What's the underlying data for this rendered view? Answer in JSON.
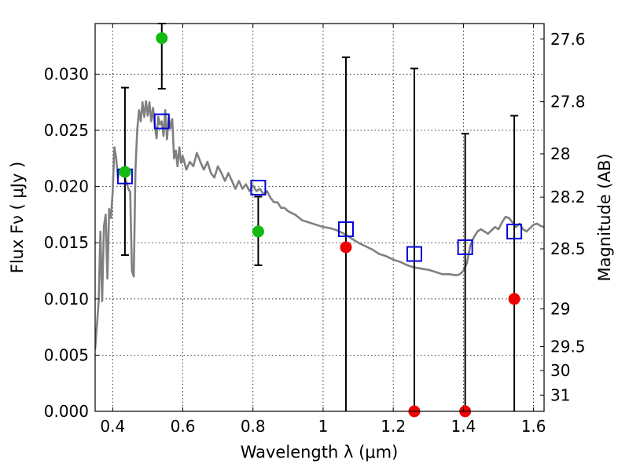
{
  "chart_data": {
    "type": "scatter",
    "xlabel": "Wavelength  λ (μm)",
    "ylabel": "Flux  Fν  ( μJy )",
    "y2label": "Magnitude (AB)",
    "xlim": [
      0.35,
      1.63
    ],
    "ylim": [
      0.0,
      0.0345
    ],
    "x_ticks": [
      {
        "value": 0.4,
        "label": "0.4"
      },
      {
        "value": 0.6,
        "label": "0.6"
      },
      {
        "value": 0.8,
        "label": "0.8"
      },
      {
        "value": 1.0,
        "label": "1"
      },
      {
        "value": 1.2,
        "label": "1.2"
      },
      {
        "value": 1.4,
        "label": "1.4"
      },
      {
        "value": 1.6,
        "label": "1.6"
      }
    ],
    "y_ticks": [
      {
        "value": 0.0,
        "label": "0.000"
      },
      {
        "value": 0.005,
        "label": "0.005"
      },
      {
        "value": 0.01,
        "label": "0.010"
      },
      {
        "value": 0.015,
        "label": "0.015"
      },
      {
        "value": 0.02,
        "label": "0.020"
      },
      {
        "value": 0.025,
        "label": "0.025"
      },
      {
        "value": 0.03,
        "label": "0.030"
      }
    ],
    "y2_ticks": [
      {
        "mag": 27.6,
        "label": "27.6"
      },
      {
        "mag": 27.8,
        "label": "27.8"
      },
      {
        "mag": 28.0,
        "label": "28"
      },
      {
        "mag": 28.2,
        "label": "28.2"
      },
      {
        "mag": 28.5,
        "label": "28.5"
      },
      {
        "mag": 29.0,
        "label": "29"
      },
      {
        "mag": 29.5,
        "label": "29.5"
      },
      {
        "mag": 30.0,
        "label": "30"
      },
      {
        "mag": 31.0,
        "label": "31"
      }
    ],
    "grid": true,
    "colors": {
      "template": "#808080",
      "model": "#0000dd",
      "detected": "#11bb11",
      "upper_limit": "#ee0000",
      "errorbar": "#000000"
    },
    "model_template": [
      [
        0.35,
        0.0055
      ],
      [
        0.36,
        0.0098
      ],
      [
        0.365,
        0.016
      ],
      [
        0.37,
        0.0098
      ],
      [
        0.375,
        0.0165
      ],
      [
        0.38,
        0.0175
      ],
      [
        0.385,
        0.0118
      ],
      [
        0.39,
        0.018
      ],
      [
        0.395,
        0.0172
      ],
      [
        0.4,
        0.0195
      ],
      [
        0.405,
        0.0235
      ],
      [
        0.41,
        0.0225
      ],
      [
        0.415,
        0.0208
      ],
      [
        0.42,
        0.0215
      ],
      [
        0.425,
        0.021
      ],
      [
        0.43,
        0.0212
      ],
      [
        0.435,
        0.0208
      ],
      [
        0.44,
        0.0203
      ],
      [
        0.445,
        0.0198
      ],
      [
        0.45,
        0.0195
      ],
      [
        0.455,
        0.0125
      ],
      [
        0.46,
        0.012
      ],
      [
        0.465,
        0.0215
      ],
      [
        0.47,
        0.025
      ],
      [
        0.475,
        0.0268
      ],
      [
        0.48,
        0.0258
      ],
      [
        0.485,
        0.0275
      ],
      [
        0.49,
        0.0262
      ],
      [
        0.495,
        0.0276
      ],
      [
        0.5,
        0.0263
      ],
      [
        0.505,
        0.0275
      ],
      [
        0.51,
        0.0258
      ],
      [
        0.515,
        0.027
      ],
      [
        0.52,
        0.0255
      ],
      [
        0.525,
        0.0243
      ],
      [
        0.53,
        0.0262
      ],
      [
        0.535,
        0.0255
      ],
      [
        0.54,
        0.0258
      ],
      [
        0.545,
        0.0245
      ],
      [
        0.55,
        0.0268
      ],
      [
        0.555,
        0.0242
      ],
      [
        0.56,
        0.0262
      ],
      [
        0.565,
        0.0252
      ],
      [
        0.57,
        0.026
      ],
      [
        0.575,
        0.0225
      ],
      [
        0.58,
        0.0232
      ],
      [
        0.585,
        0.0218
      ],
      [
        0.59,
        0.0235
      ],
      [
        0.595,
        0.0221
      ],
      [
        0.6,
        0.0227
      ],
      [
        0.61,
        0.0215
      ],
      [
        0.62,
        0.0222
      ],
      [
        0.63,
        0.0218
      ],
      [
        0.64,
        0.023
      ],
      [
        0.65,
        0.0222
      ],
      [
        0.66,
        0.0215
      ],
      [
        0.67,
        0.0222
      ],
      [
        0.68,
        0.0212
      ],
      [
        0.69,
        0.0208
      ],
      [
        0.7,
        0.0218
      ],
      [
        0.71,
        0.0212
      ],
      [
        0.72,
        0.0205
      ],
      [
        0.73,
        0.0212
      ],
      [
        0.74,
        0.0205
      ],
      [
        0.75,
        0.0198
      ],
      [
        0.76,
        0.0205
      ],
      [
        0.77,
        0.0198
      ],
      [
        0.78,
        0.0202
      ],
      [
        0.79,
        0.0196
      ],
      [
        0.8,
        0.0201
      ],
      [
        0.81,
        0.0196
      ],
      [
        0.82,
        0.0198
      ],
      [
        0.83,
        0.0193
      ],
      [
        0.84,
        0.0196
      ],
      [
        0.85,
        0.019
      ],
      [
        0.86,
        0.0186
      ],
      [
        0.87,
        0.0186
      ],
      [
        0.88,
        0.0181
      ],
      [
        0.89,
        0.0181
      ],
      [
        0.9,
        0.0178
      ],
      [
        0.92,
        0.0175
      ],
      [
        0.94,
        0.017
      ],
      [
        0.96,
        0.0168
      ],
      [
        0.98,
        0.0166
      ],
      [
        1.0,
        0.0164
      ],
      [
        1.02,
        0.0163
      ],
      [
        1.04,
        0.0161
      ],
      [
        1.06,
        0.0158
      ],
      [
        1.08,
        0.0154
      ],
      [
        1.1,
        0.015
      ],
      [
        1.12,
        0.0147
      ],
      [
        1.14,
        0.0144
      ],
      [
        1.16,
        0.014
      ],
      [
        1.18,
        0.0138
      ],
      [
        1.2,
        0.0135
      ],
      [
        1.22,
        0.0133
      ],
      [
        1.24,
        0.013
      ],
      [
        1.26,
        0.0128
      ],
      [
        1.28,
        0.0127
      ],
      [
        1.3,
        0.0126
      ],
      [
        1.32,
        0.0124
      ],
      [
        1.34,
        0.0122
      ],
      [
        1.36,
        0.0122
      ],
      [
        1.38,
        0.0121
      ],
      [
        1.39,
        0.0122
      ],
      [
        1.4,
        0.0125
      ],
      [
        1.41,
        0.0132
      ],
      [
        1.42,
        0.0148
      ],
      [
        1.43,
        0.0155
      ],
      [
        1.44,
        0.016
      ],
      [
        1.45,
        0.0162
      ],
      [
        1.46,
        0.016
      ],
      [
        1.47,
        0.0158
      ],
      [
        1.48,
        0.0161
      ],
      [
        1.49,
        0.0164
      ],
      [
        1.5,
        0.0162
      ],
      [
        1.51,
        0.0168
      ],
      [
        1.52,
        0.0173
      ],
      [
        1.53,
        0.0172
      ],
      [
        1.54,
        0.0168
      ],
      [
        1.55,
        0.0164
      ],
      [
        1.56,
        0.0167
      ],
      [
        1.57,
        0.0162
      ],
      [
        1.58,
        0.016
      ],
      [
        1.59,
        0.0163
      ],
      [
        1.6,
        0.0166
      ],
      [
        1.61,
        0.0167
      ],
      [
        1.62,
        0.0165
      ],
      [
        1.63,
        0.0164
      ]
    ],
    "model_points": [
      {
        "x": 0.435,
        "y": 0.0209
      },
      {
        "x": 0.54,
        "y": 0.0258
      },
      {
        "x": 0.815,
        "y": 0.0199
      },
      {
        "x": 1.065,
        "y": 0.0162
      },
      {
        "x": 1.26,
        "y": 0.014
      },
      {
        "x": 1.405,
        "y": 0.0146
      },
      {
        "x": 1.545,
        "y": 0.016
      }
    ],
    "observations": [
      {
        "x": 0.435,
        "y": 0.0213,
        "yerr_low": 0.0139,
        "yerr_high": 0.0288,
        "detected": true
      },
      {
        "x": 0.54,
        "y": 0.0332,
        "yerr_low": 0.0287,
        "yerr_high": 0.0345,
        "detected": true
      },
      {
        "x": 0.815,
        "y": 0.016,
        "yerr_low": 0.013,
        "yerr_high": 0.0191,
        "detected": true
      },
      {
        "x": 1.065,
        "y": 0.0146,
        "yerr_low": 0.0,
        "yerr_high": 0.0315,
        "detected": false
      },
      {
        "x": 1.26,
        "y": 0.0,
        "yerr_low": 0.0,
        "yerr_high": 0.0305,
        "detected": false
      },
      {
        "x": 1.405,
        "y": 0.0,
        "yerr_low": 0.0,
        "yerr_high": 0.0247,
        "detected": false
      },
      {
        "x": 1.545,
        "y": 0.01,
        "yerr_low": 0.0,
        "yerr_high": 0.0263,
        "detected": false
      }
    ]
  }
}
